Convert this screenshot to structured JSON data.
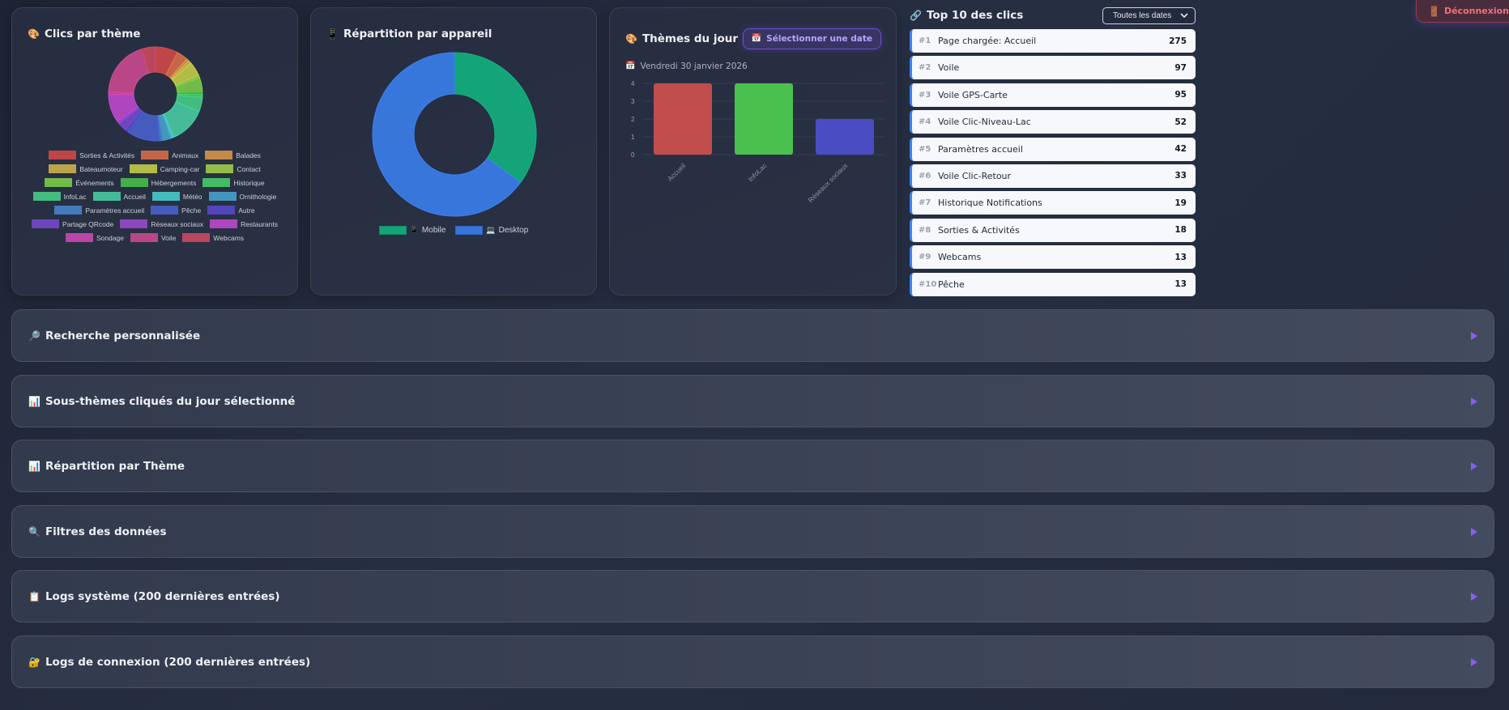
{
  "header": {
    "logout_label": "Déconnexion",
    "logout_icon": "door-icon"
  },
  "themes_card": {
    "title": "Clics par thème",
    "icon": "palette-icon"
  },
  "device_card": {
    "title": "Répartition par appareil",
    "icon": "mobile-phone-icon",
    "legend": [
      {
        "label": "Mobile",
        "icon": "mobile-phone-icon",
        "color": "#10b981"
      },
      {
        "label": "Desktop",
        "icon": "laptop-icon",
        "color": "#3b82f6"
      }
    ]
  },
  "day_card": {
    "title": "Thèmes du jour",
    "icon": "palette-icon",
    "date_button": "Sélectionner une date",
    "date_label": "Vendredi 30 janvier 2026"
  },
  "top10": {
    "title": "Top 10 des clics",
    "icon": "link-icon",
    "filter_selected": "Toutes les dates",
    "items": [
      {
        "rank": "#1",
        "label": "Page chargée: Accueil",
        "count": "275"
      },
      {
        "rank": "#2",
        "label": "Voile",
        "count": "97"
      },
      {
        "rank": "#3",
        "label": "Voile GPS-Carte",
        "count": "95"
      },
      {
        "rank": "#4",
        "label": "Voile Clic-Niveau-Lac",
        "count": "52"
      },
      {
        "rank": "#5",
        "label": "Paramètres accueil",
        "count": "42"
      },
      {
        "rank": "#6",
        "label": "Voile Clic-Retour",
        "count": "33"
      },
      {
        "rank": "#7",
        "label": "Historique Notifications",
        "count": "19"
      },
      {
        "rank": "#8",
        "label": "Sorties & Activités",
        "count": "18"
      },
      {
        "rank": "#9",
        "label": "Webcams",
        "count": "13"
      },
      {
        "rank": "#10",
        "label": "Pêche",
        "count": "13"
      }
    ]
  },
  "sections": [
    {
      "title": "Recherche personnalisée",
      "icon": "magnifier-right-icon",
      "glyph": "🔎"
    },
    {
      "title": "Sous-thèmes cliqués du jour sélectionné",
      "icon": "bar-chart-icon",
      "glyph": "📊"
    },
    {
      "title": "Répartition par Thème",
      "icon": "bar-chart-icon",
      "glyph": "📊"
    },
    {
      "title": "Filtres des données",
      "icon": "magnifier-icon",
      "glyph": "🔍"
    },
    {
      "title": "Logs système (200 dernières entrées)",
      "icon": "clipboard-icon",
      "glyph": "📋"
    },
    {
      "title": "Logs de connexion (200 dernières entrées)",
      "icon": "lock-key-icon",
      "glyph": "🔐"
    }
  ],
  "chart_data": [
    {
      "type": "pie",
      "title": "Clics par thème",
      "donut": true,
      "legend_position": "bottom",
      "categories": [
        "Sorties & Activités",
        "Animaux",
        "Balades",
        "Bateaumoteur",
        "Camping-car",
        "Contact",
        "Événements",
        "Hébergements",
        "Historique",
        "InfoLac",
        "Accueil",
        "Météo",
        "Ornithologie",
        "Paramètres accueil",
        "Pêche",
        "Autre",
        "Partage QRcode",
        "Réseaux sociaux",
        "Restaurants",
        "Sondage",
        "Voile",
        "Webcams"
      ],
      "values": [
        8,
        4,
        1,
        1,
        5,
        1,
        5,
        1,
        1,
        5,
        13,
        1,
        3,
        1,
        12,
        1,
        3,
        1,
        10,
        1,
        20,
        5
      ],
      "colors": [
        "#d94a4a",
        "#e0714a",
        "#e09a4a",
        "#d8b94a",
        "#cdd44a",
        "#a8d44a",
        "#7fd44a",
        "#4ac64a",
        "#4ad46a",
        "#4ad48a",
        "#4ad4a8",
        "#4ad4d4",
        "#4aa8d4",
        "#4a86d4",
        "#4a64d4",
        "#5a4ad4",
        "#7a4ad4",
        "#a04ad4",
        "#c64ad4",
        "#d44ab8",
        "#d44a94",
        "#d44a64"
      ]
    },
    {
      "type": "pie",
      "title": "Répartition par appareil",
      "donut": true,
      "legend_position": "bottom",
      "categories": [
        "Mobile",
        "Desktop"
      ],
      "values": [
        35,
        65
      ],
      "colors": [
        "#10b981",
        "#3b82f6"
      ]
    },
    {
      "type": "bar",
      "title": "Thèmes du jour",
      "subtitle": "Vendredi 30 janvier 2026",
      "categories": [
        "Accueil",
        "InfoLac",
        "Réseaux sociaux"
      ],
      "values": [
        4,
        4,
        2
      ],
      "colors": [
        "#c24d4d",
        "#4ac04e",
        "#4a4cc4"
      ],
      "ylim": [
        0,
        4
      ],
      "yticks": [
        0,
        1,
        2,
        3,
        4
      ],
      "grid": true,
      "xlabel": "",
      "ylabel": ""
    }
  ]
}
